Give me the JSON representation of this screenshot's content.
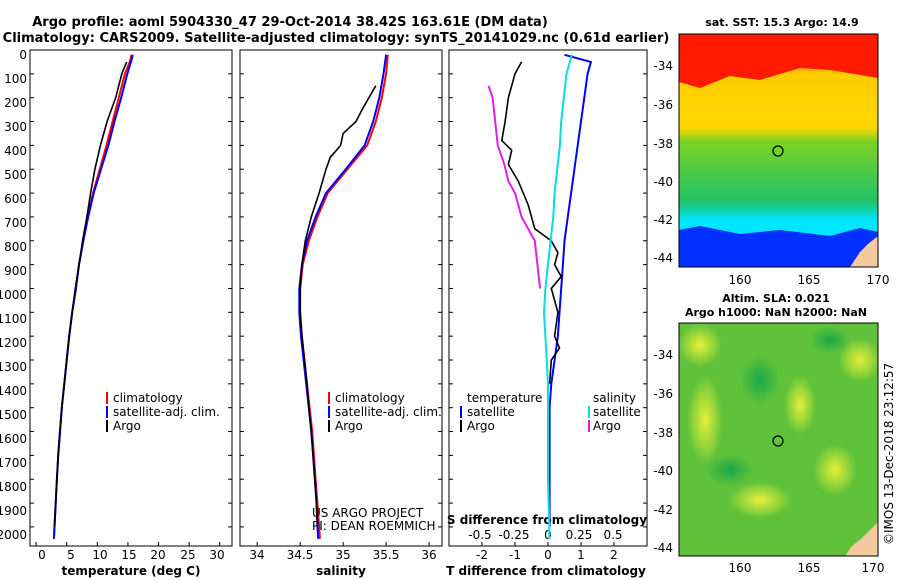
{
  "header": {
    "title_line1": "Argo profile: aoml 5904330_47 29-Oct-2014 38.42S 163.61E (DM data)",
    "title_line2": "Climatology: CARS2009. Satellite-adjusted climatology: synTS_20141029.nc (0.61d earlier)"
  },
  "map_sst": {
    "title": "sat. SST: 15.3 Argo: 14.9",
    "yticks": [
      "-34",
      "-36",
      "-38",
      "-40",
      "-42",
      "-44"
    ],
    "xticks": [
      "160",
      "165",
      "170"
    ]
  },
  "map_sla": {
    "title_line1": "Altim. SLA: 0.021",
    "title_line2": "Argo h1000: NaN h2000: NaN",
    "yticks": [
      "-34",
      "-36",
      "-38",
      "-40",
      "-42",
      "-44"
    ],
    "xticks": [
      "160",
      "165",
      "170"
    ]
  },
  "credits": {
    "project": "US ARGO PROJECT",
    "pi": "PI: DEAN ROEMMICH",
    "imos": "©IMOS 13-Dec-2018 23:12:57"
  },
  "colors": {
    "climatology": "#ff0000",
    "satellite": "#0000ff",
    "argo": "#000000",
    "sal_sat": "#00e0e0",
    "sal_argo": "#e020e0"
  },
  "chart_data": [
    {
      "type": "line",
      "name": "temperature",
      "xlabel": "temperature (deg C)",
      "ylabel": "pressure",
      "xlim": [
        -1,
        32
      ],
      "ylim": [
        2080,
        0
      ],
      "xticks": [
        "0",
        "5",
        "10",
        "15",
        "20",
        "25",
        "30"
      ],
      "xtick_values": [
        0,
        5,
        10,
        15,
        20,
        25,
        30
      ],
      "yticks": [
        "0",
        "100",
        "200",
        "300",
        "400",
        "500",
        "600",
        "700",
        "800",
        "900",
        "1000",
        "1100",
        "1200",
        "1300",
        "1400",
        "1500",
        "1600",
        "1700",
        "1800",
        "1900",
        "2000"
      ],
      "ytick_values": [
        0,
        100,
        200,
        300,
        400,
        500,
        600,
        700,
        800,
        900,
        1000,
        1100,
        1200,
        1300,
        1400,
        1500,
        1600,
        1700,
        1800,
        1900,
        2000
      ],
      "legend": [
        "climatology",
        "satellite-adj. clim.",
        "Argo"
      ],
      "series": [
        {
          "name": "climatology",
          "color": "#ff0000",
          "points": [
            [
              15.6,
              20
            ],
            [
              15.3,
              50
            ],
            [
              14.5,
              100
            ],
            [
              13.5,
              200
            ],
            [
              12.5,
              300
            ],
            [
              11.5,
              400
            ],
            [
              10.4,
              500
            ],
            [
              9.3,
              600
            ],
            [
              8.4,
              700
            ],
            [
              7.7,
              800
            ],
            [
              7.0,
              900
            ],
            [
              6.5,
              1000
            ],
            [
              5.9,
              1100
            ],
            [
              5.4,
              1200
            ],
            [
              5.0,
              1300
            ],
            [
              4.6,
              1400
            ],
            [
              4.2,
              1500
            ],
            [
              3.9,
              1600
            ],
            [
              3.6,
              1700
            ],
            [
              3.4,
              1800
            ],
            [
              3.2,
              1900
            ],
            [
              3.0,
              2000
            ],
            [
              2.9,
              2050
            ]
          ]
        },
        {
          "name": "satellite-adj. clim.",
          "color": "#0000ff",
          "points": [
            [
              15.8,
              20
            ],
            [
              15.5,
              50
            ],
            [
              14.9,
              100
            ],
            [
              13.9,
              200
            ],
            [
              12.8,
              300
            ],
            [
              11.8,
              400
            ],
            [
              10.6,
              500
            ],
            [
              9.4,
              600
            ],
            [
              8.5,
              700
            ],
            [
              7.7,
              800
            ],
            [
              7.0,
              900
            ],
            [
              6.5,
              1000
            ],
            [
              5.9,
              1100
            ],
            [
              5.4,
              1200
            ],
            [
              5.0,
              1300
            ],
            [
              4.6,
              1400
            ],
            [
              4.2,
              1500
            ],
            [
              3.9,
              1600
            ],
            [
              3.6,
              1700
            ],
            [
              3.4,
              1800
            ],
            [
              3.2,
              1900
            ],
            [
              3.0,
              2000
            ],
            [
              2.9,
              2050
            ]
          ]
        },
        {
          "name": "Argo",
          "color": "#000000",
          "points": [
            [
              14.8,
              50
            ],
            [
              14.0,
              100
            ],
            [
              13.0,
              200
            ],
            [
              11.6,
              300
            ],
            [
              10.5,
              400
            ],
            [
              9.6,
              500
            ],
            [
              8.9,
              600
            ],
            [
              8.3,
              700
            ],
            [
              7.6,
              800
            ],
            [
              7.0,
              900
            ],
            [
              6.4,
              1000
            ],
            [
              5.9,
              1100
            ],
            [
              5.4,
              1200
            ],
            [
              5.0,
              1300
            ],
            [
              4.6,
              1400
            ],
            [
              4.2,
              1500
            ],
            [
              3.9,
              1600
            ],
            [
              3.6,
              1700
            ],
            [
              3.4,
              1800
            ],
            [
              3.2,
              1900
            ],
            [
              3.0,
              2000
            ]
          ]
        }
      ]
    },
    {
      "type": "line",
      "name": "salinity",
      "xlabel": "salinity",
      "ylabel": "pressure",
      "xlim": [
        33.8,
        36.15
      ],
      "ylim": [
        2080,
        0
      ],
      "xticks": [
        "34",
        "34.5",
        "35",
        "35.5",
        "36"
      ],
      "xtick_values": [
        34,
        34.5,
        35,
        35.5,
        36
      ],
      "legend": [
        "climatology",
        "satellite-adj. clim.",
        "Argo"
      ],
      "series": [
        {
          "name": "climatology",
          "color": "#ff0000",
          "points": [
            [
              35.52,
              20
            ],
            [
              35.5,
              100
            ],
            [
              35.45,
              200
            ],
            [
              35.38,
              300
            ],
            [
              35.28,
              400
            ],
            [
              35.05,
              500
            ],
            [
              34.82,
              600
            ],
            [
              34.7,
              700
            ],
            [
              34.6,
              800
            ],
            [
              34.53,
              900
            ],
            [
              34.5,
              1000
            ],
            [
              34.5,
              1100
            ],
            [
              34.52,
              1200
            ],
            [
              34.55,
              1300
            ],
            [
              34.58,
              1400
            ],
            [
              34.61,
              1500
            ],
            [
              34.64,
              1600
            ],
            [
              34.66,
              1700
            ],
            [
              34.68,
              1800
            ],
            [
              34.7,
              1900
            ],
            [
              34.72,
              2000
            ],
            [
              34.73,
              2050
            ]
          ]
        },
        {
          "name": "satellite-adj. clim.",
          "color": "#0000ff",
          "points": [
            [
              35.5,
              20
            ],
            [
              35.47,
              100
            ],
            [
              35.42,
              200
            ],
            [
              35.35,
              300
            ],
            [
              35.25,
              400
            ],
            [
              35.03,
              500
            ],
            [
              34.8,
              600
            ],
            [
              34.68,
              700
            ],
            [
              34.58,
              800
            ],
            [
              34.52,
              900
            ],
            [
              34.49,
              1000
            ],
            [
              34.49,
              1100
            ],
            [
              34.51,
              1200
            ],
            [
              34.54,
              1300
            ],
            [
              34.57,
              1400
            ],
            [
              34.6,
              1500
            ],
            [
              34.63,
              1600
            ],
            [
              34.65,
              1700
            ],
            [
              34.67,
              1800
            ],
            [
              34.69,
              1900
            ],
            [
              34.7,
              2000
            ],
            [
              34.71,
              2050
            ]
          ]
        },
        {
          "name": "Argo",
          "color": "#000000",
          "points": [
            [
              35.38,
              150
            ],
            [
              35.3,
              200
            ],
            [
              35.22,
              250
            ],
            [
              35.15,
              300
            ],
            [
              35.0,
              350
            ],
            [
              34.97,
              400
            ],
            [
              34.85,
              450
            ],
            [
              34.8,
              500
            ],
            [
              34.72,
              600
            ],
            [
              34.63,
              700
            ],
            [
              34.56,
              800
            ],
            [
              34.52,
              900
            ],
            [
              34.5,
              1000
            ],
            [
              34.5,
              1100
            ],
            [
              34.52,
              1200
            ],
            [
              34.55,
              1300
            ],
            [
              34.58,
              1400
            ],
            [
              34.6,
              1500
            ],
            [
              34.63,
              1600
            ],
            [
              34.65,
              1700
            ],
            [
              34.67,
              1800
            ],
            [
              34.69,
              1900
            ],
            [
              34.7,
              1980
            ]
          ]
        }
      ]
    },
    {
      "type": "line",
      "name": "difference",
      "xlabel": "T difference from climatology",
      "xlabel2": "S difference from climatology",
      "ylabel": "pressure",
      "xlim": [
        -3.0,
        3.0
      ],
      "ylim": [
        2080,
        0
      ],
      "xticks": [
        "-2",
        "-1",
        "0",
        "1",
        "2"
      ],
      "xtick_values": [
        -2,
        -1,
        0,
        1,
        2
      ],
      "xticks_s": [
        "-0.5",
        "-0.25",
        "0",
        "0.25",
        "0.5"
      ],
      "xtick_s_values": [
        -0.5,
        -0.25,
        0,
        0.25,
        0.5
      ],
      "legend_temperature_title": "temperature",
      "legend_salinity_title": "salinity",
      "legend_temperature": [
        "satellite",
        "Argo"
      ],
      "legend_salinity": [
        "satellite",
        "Argo"
      ],
      "series": [
        {
          "name": "T satellite",
          "color": "#0000ff",
          "points": [
            [
              0.5,
              20
            ],
            [
              1.3,
              50
            ],
            [
              1.2,
              100
            ],
            [
              1.1,
              200
            ],
            [
              1.0,
              300
            ],
            [
              0.9,
              400
            ],
            [
              0.8,
              500
            ],
            [
              0.7,
              600
            ],
            [
              0.6,
              700
            ],
            [
              0.5,
              800
            ],
            [
              0.45,
              900
            ],
            [
              0.4,
              1000
            ],
            [
              0.35,
              1100
            ],
            [
              0.3,
              1200
            ],
            [
              0.2,
              1300
            ],
            [
              0.1,
              1400
            ],
            [
              0.05,
              1500
            ],
            [
              0.05,
              1700
            ],
            [
              0.05,
              1900
            ],
            [
              0.05,
              2000
            ]
          ]
        },
        {
          "name": "T Argo",
          "color": "#000000",
          "points": [
            [
              -0.8,
              50
            ],
            [
              -1.0,
              100
            ],
            [
              -1.2,
              200
            ],
            [
              -1.3,
              300
            ],
            [
              -1.4,
              380
            ],
            [
              -1.1,
              420
            ],
            [
              -1.2,
              480
            ],
            [
              -0.9,
              550
            ],
            [
              -0.6,
              650
            ],
            [
              -0.4,
              750
            ],
            [
              0.1,
              800
            ],
            [
              0.3,
              850
            ],
            [
              0.2,
              900
            ],
            [
              0.4,
              950
            ],
            [
              0.1,
              1000
            ],
            [
              0.3,
              1100
            ],
            [
              0.2,
              1200
            ],
            [
              0.35,
              1250
            ],
            [
              0.1,
              1300
            ],
            [
              0.05,
              1400
            ]
          ]
        },
        {
          "name": "S satellite",
          "color": "#00e0e0",
          "points": [
            [
              0.18,
              20
            ],
            [
              0.14,
              100
            ],
            [
              0.12,
              200
            ],
            [
              0.1,
              300
            ],
            [
              0.09,
              400
            ],
            [
              0.07,
              500
            ],
            [
              0.05,
              600
            ],
            [
              0.04,
              700
            ],
            [
              0.02,
              800
            ],
            [
              0.0,
              900
            ],
            [
              -0.02,
              1000
            ],
            [
              -0.03,
              1100
            ],
            [
              -0.02,
              1200
            ],
            [
              -0.01,
              1300
            ],
            [
              0.0,
              1400
            ],
            [
              0.0,
              1600
            ],
            [
              0.0,
              1800
            ],
            [
              0.01,
              2000
            ],
            [
              0.01,
              2050
            ]
          ]
        },
        {
          "name": "S Argo",
          "color": "#e020e0",
          "points": [
            [
              -0.45,
              150
            ],
            [
              -0.42,
              200
            ],
            [
              -0.4,
              300
            ],
            [
              -0.38,
              400
            ],
            [
              -0.33,
              480
            ],
            [
              -0.3,
              550
            ],
            [
              -0.25,
              600
            ],
            [
              -0.2,
              700
            ],
            [
              -0.1,
              800
            ],
            [
              -0.08,
              900
            ],
            [
              -0.06,
              1000
            ]
          ]
        }
      ]
    }
  ]
}
